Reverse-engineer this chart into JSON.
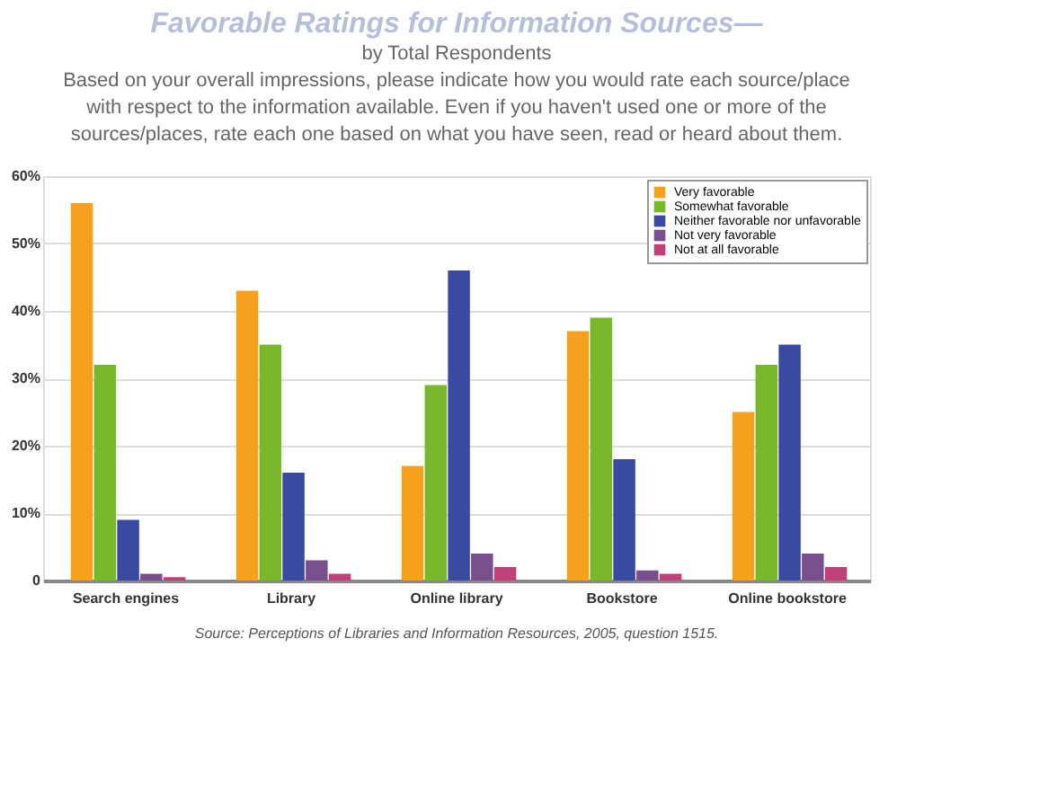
{
  "chart_data": {
    "type": "bar",
    "title": "Favorable Ratings for Information Sources—",
    "subtitle": "by Total Respondents",
    "annotations": [
      "Based on your overall impressions, please indicate how you would rate each source/place with respect to the information available. Even if you haven't used one or more of the sources/places, rate each one based on what you have seen, read or heard about them.",
      "Source: Perceptions of Libraries and Information Resources, 2005, question 1515."
    ],
    "categories": [
      "Search engines",
      "Library",
      "Online library",
      "Bookstore",
      "Online bookstore"
    ],
    "series": [
      {
        "name": "Very favorable",
        "color": "#f5a01f",
        "values": [
          56,
          43,
          17,
          37,
          25
        ]
      },
      {
        "name": "Somewhat favorable",
        "color": "#78b82a",
        "values": [
          32,
          35,
          29,
          39,
          32
        ]
      },
      {
        "name": "Neither favorable nor unfavorable",
        "color": "#3a4aa0",
        "values": [
          9,
          16,
          46,
          18,
          35
        ]
      },
      {
        "name": "Not very favorable",
        "color": "#7a4f8e",
        "values": [
          1,
          3,
          4,
          1.5,
          4
        ]
      },
      {
        "name": "Not at all favorable",
        "color": "#c0407a",
        "values": [
          0.5,
          1,
          2,
          1,
          2
        ]
      }
    ],
    "ylim": [
      0,
      60
    ],
    "yticks": [
      0,
      {
        "value": 10,
        "label": "10%"
      },
      {
        "value": 20,
        "label": "20%"
      },
      {
        "value": 30,
        "label": "30%"
      },
      {
        "value": 40,
        "label": "40%"
      },
      {
        "value": 50,
        "label": "50%"
      },
      {
        "value": 60,
        "label": "60%"
      }
    ],
    "grid": "y",
    "legend": "top right"
  }
}
